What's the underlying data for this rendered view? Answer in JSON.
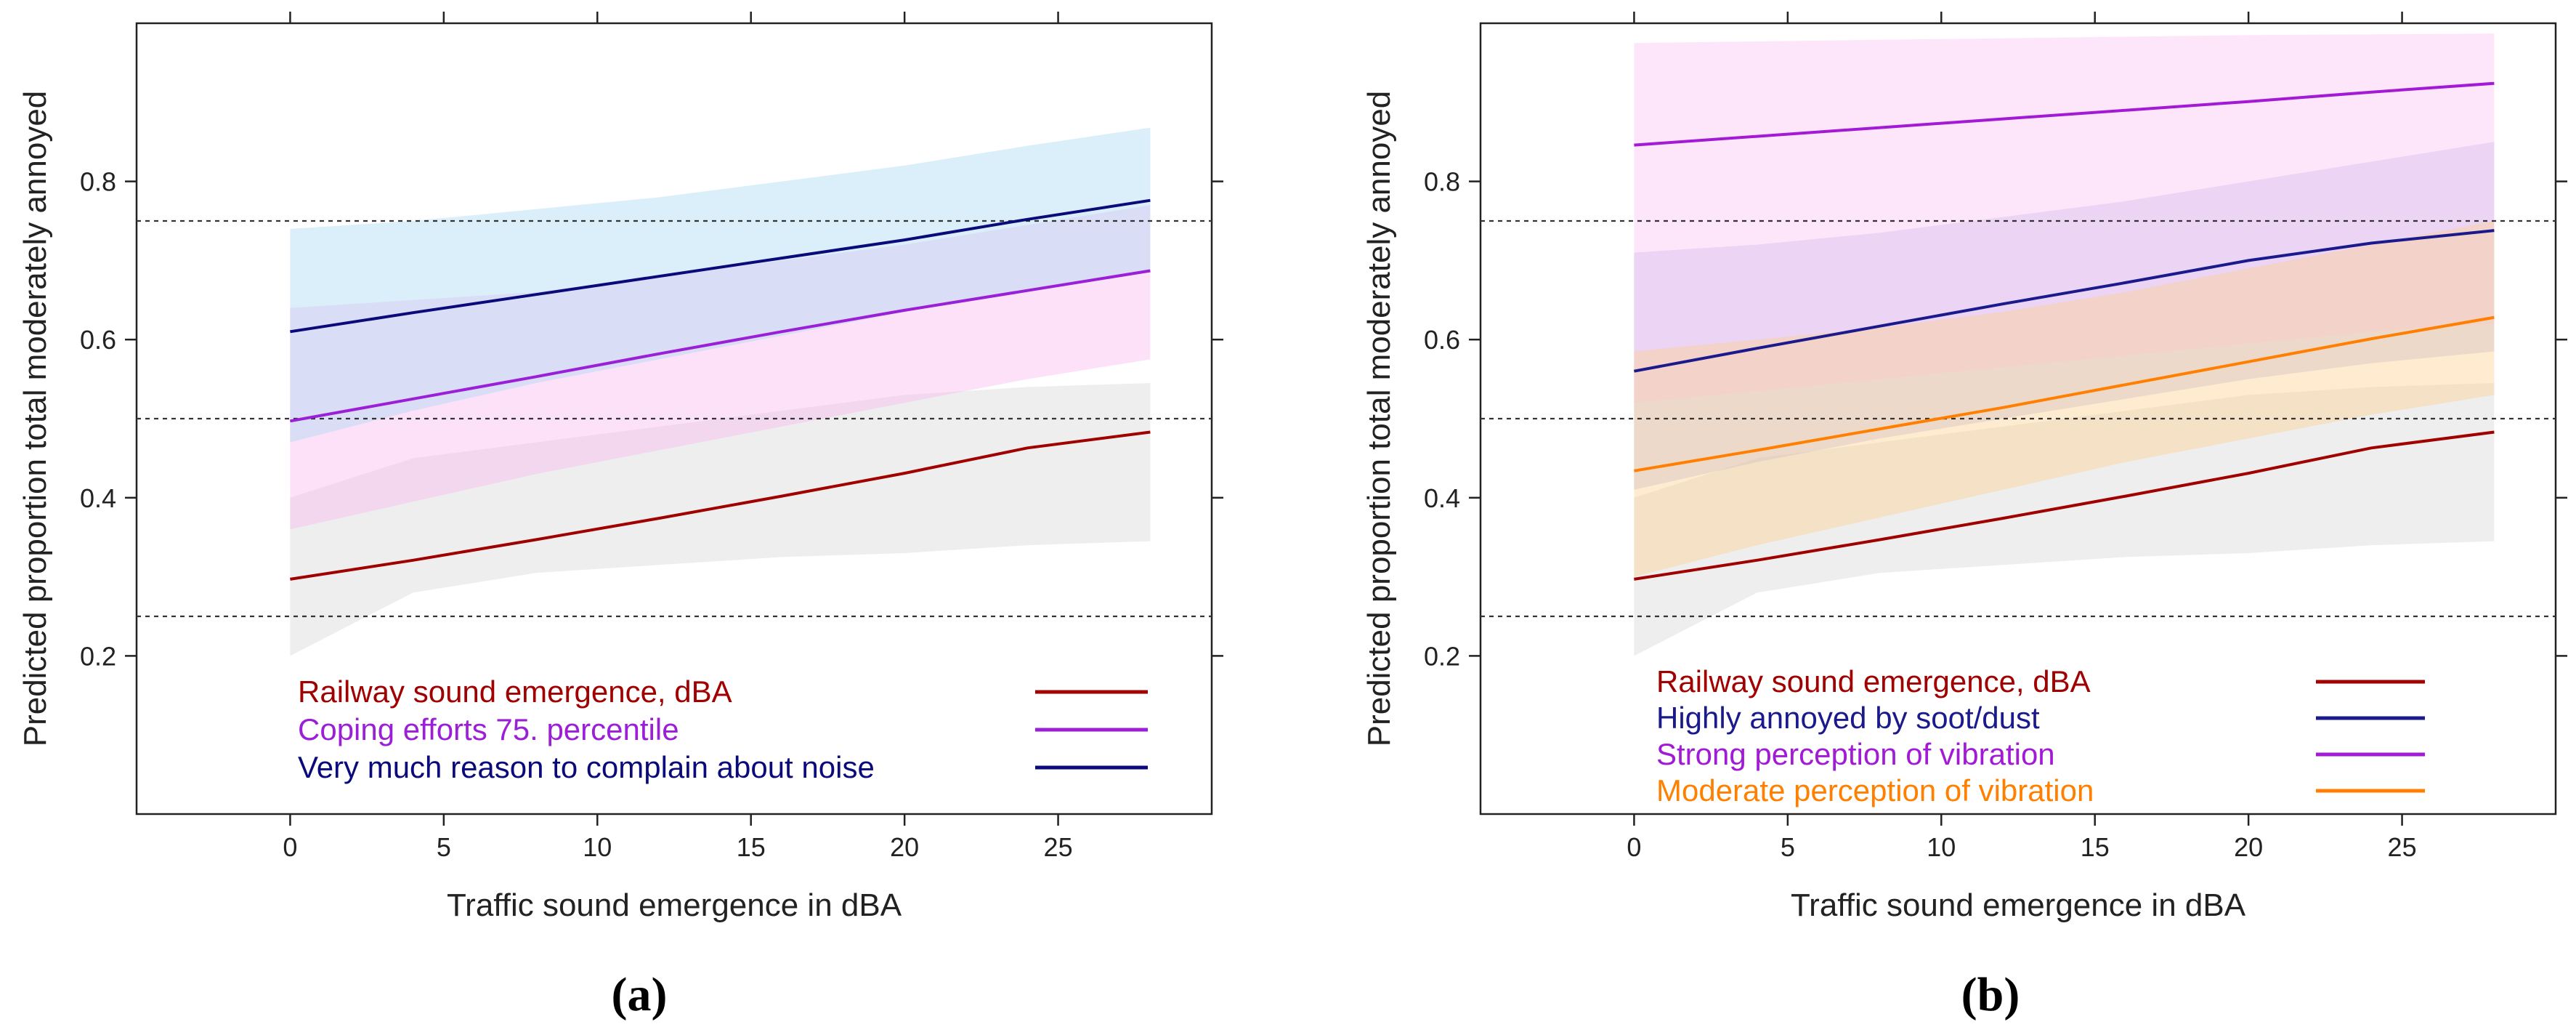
{
  "chart_data": [
    {
      "type": "line",
      "panel_label": "(a)",
      "xlabel": "Traffic sound emergence in dBA",
      "ylabel": "Predicted proportion total moderately annoyed",
      "xlim": [
        -5,
        30
      ],
      "ylim": [
        0.0,
        1.0
      ],
      "x_ticks": [
        "0",
        "5",
        "10",
        "15",
        "20",
        "25"
      ],
      "y_ticks": [
        "0.2",
        "0.4",
        "0.6",
        "0.8"
      ],
      "reference_lines": [
        0.25,
        0.5,
        0.75
      ],
      "x": [
        0,
        28
      ],
      "series": [
        {
          "name": "Railway sound emergence, dBA",
          "color": "#a00000",
          "band_color": "#d6d6d6",
          "values": [
            0.297,
            0.321,
            0.347,
            0.374,
            0.402,
            0.431,
            0.463,
            0.483
          ],
          "x": [
            0,
            4,
            8,
            12,
            16,
            20,
            24,
            28
          ],
          "lower": [
            0.2,
            0.28,
            0.305,
            0.315,
            0.325,
            0.33,
            0.34,
            0.345
          ],
          "upper": [
            0.4,
            0.45,
            0.47,
            0.49,
            0.51,
            0.53,
            0.54,
            0.545
          ]
        },
        {
          "name": "Coping efforts 75. percentile",
          "color": "#9b1fd6",
          "band_color": "#f9b7f0",
          "values": [
            0.497,
            0.525,
            0.553,
            0.582,
            0.61,
            0.637,
            0.662,
            0.687
          ],
          "x": [
            0,
            4,
            8,
            12,
            16,
            20,
            24,
            28
          ],
          "lower": [
            0.36,
            0.395,
            0.43,
            0.46,
            0.49,
            0.52,
            0.55,
            0.575
          ],
          "upper": [
            0.64,
            0.65,
            0.66,
            0.68,
            0.7,
            0.72,
            0.745,
            0.77
          ]
        },
        {
          "name": "Very much reason to complain about noise",
          "color": "#0a0a7a",
          "band_color": "#a9d8f2",
          "values": [
            0.61,
            0.634,
            0.657,
            0.68,
            0.703,
            0.726,
            0.752,
            0.776
          ],
          "x": [
            0,
            4,
            8,
            12,
            16,
            20,
            24,
            28
          ],
          "lower": [
            0.47,
            0.51,
            0.545,
            0.575,
            0.605,
            0.635,
            0.66,
            0.685
          ],
          "upper": [
            0.74,
            0.75,
            0.765,
            0.78,
            0.8,
            0.82,
            0.845,
            0.868
          ]
        }
      ]
    },
    {
      "type": "line",
      "panel_label": "(b)",
      "xlabel": "Traffic sound emergence in dBA",
      "ylabel": "Predicted proportion total moderately annoyed",
      "xlim": [
        -5,
        30
      ],
      "ylim": [
        0.0,
        1.0
      ],
      "x_ticks": [
        "0",
        "5",
        "10",
        "15",
        "20",
        "25"
      ],
      "y_ticks": [
        "0.2",
        "0.4",
        "0.6",
        "0.8"
      ],
      "reference_lines": [
        0.25,
        0.5,
        0.75
      ],
      "series": [
        {
          "name": "Railway sound emergence, dBA",
          "color": "#a00000",
          "band_color": "#d6d6d6",
          "values": [
            0.297,
            0.321,
            0.347,
            0.374,
            0.402,
            0.431,
            0.463,
            0.483
          ],
          "x": [
            0,
            4,
            8,
            12,
            16,
            20,
            24,
            28
          ],
          "lower": [
            0.2,
            0.28,
            0.305,
            0.315,
            0.325,
            0.33,
            0.34,
            0.345
          ],
          "upper": [
            0.4,
            0.45,
            0.47,
            0.49,
            0.51,
            0.53,
            0.54,
            0.545
          ]
        },
        {
          "name": "Highly annoyed by soot/dust",
          "color": "#1a1a8c",
          "band_color": "#b8b6e6",
          "values": [
            0.56,
            0.589,
            0.617,
            0.645,
            0.672,
            0.7,
            0.722,
            0.738
          ],
          "x": [
            0,
            4,
            8,
            12,
            16,
            20,
            24,
            28
          ],
          "lower": [
            0.41,
            0.445,
            0.475,
            0.5,
            0.525,
            0.55,
            0.57,
            0.585
          ],
          "upper": [
            0.71,
            0.72,
            0.735,
            0.755,
            0.775,
            0.8,
            0.825,
            0.85
          ]
        },
        {
          "name": "Strong perception of vibration",
          "color": "#a21ad6",
          "band_color": "#fbc4f3",
          "values": [
            0.846,
            0.857,
            0.868,
            0.879,
            0.89,
            0.901,
            0.913,
            0.924
          ],
          "x": [
            0,
            4,
            8,
            12,
            16,
            20,
            24,
            28
          ],
          "lower": [
            0.52,
            0.535,
            0.55,
            0.565,
            0.58,
            0.595,
            0.61,
            0.62
          ],
          "upper": [
            0.975,
            0.977,
            0.979,
            0.981,
            0.983,
            0.985,
            0.986,
            0.987
          ]
        },
        {
          "name": "Moderate perception of vibration",
          "color": "#ff8000",
          "band_color": "#ffcf8c",
          "values": [
            0.434,
            0.46,
            0.487,
            0.514,
            0.543,
            0.572,
            0.601,
            0.628
          ],
          "x": [
            0,
            4,
            8,
            12,
            16,
            20,
            24,
            28
          ],
          "lower": [
            0.3,
            0.34,
            0.375,
            0.41,
            0.445,
            0.475,
            0.505,
            0.53
          ],
          "upper": [
            0.585,
            0.6,
            0.615,
            0.635,
            0.66,
            0.69,
            0.72,
            0.75
          ]
        }
      ]
    }
  ]
}
